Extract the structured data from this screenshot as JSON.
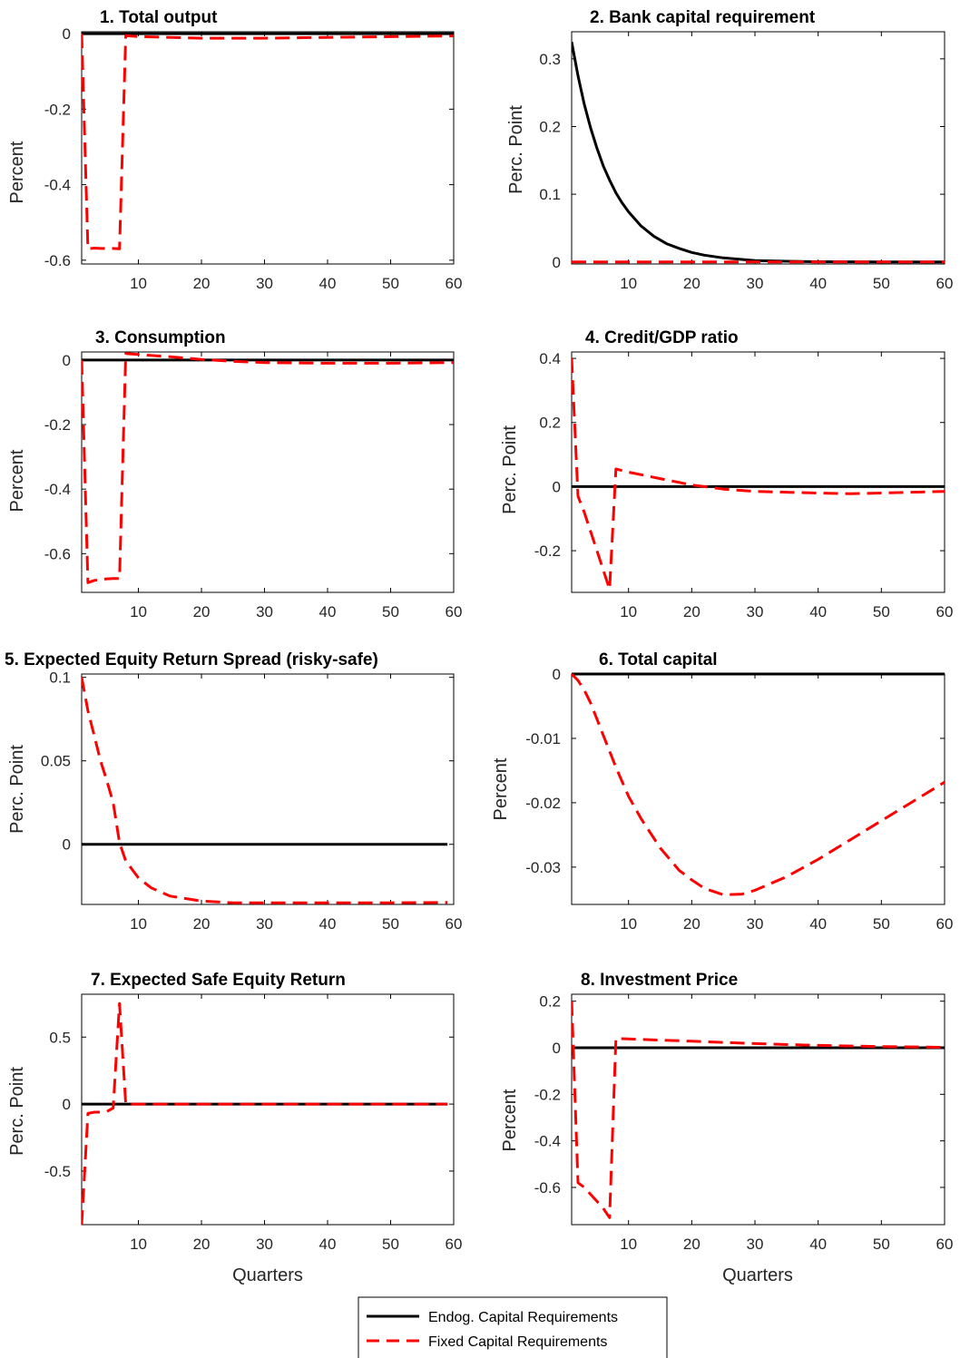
{
  "legend": {
    "entries": [
      {
        "label": "Endog. Capital Requirements",
        "color": "#000000",
        "style": "solid"
      },
      {
        "label": "Fixed Capital Requirements",
        "color": "#ff0000",
        "style": "dashed"
      }
    ]
  },
  "chart_data": [
    {
      "type": "line",
      "title": "1. Total output",
      "ylabel": "Percent",
      "xlabel": "",
      "xlim": [
        1,
        60
      ],
      "ylim": [
        -0.61,
        0.005
      ],
      "xticks": [
        10,
        20,
        30,
        40,
        50,
        60
      ],
      "yticks": [
        0,
        -0.2,
        -0.4,
        -0.6
      ],
      "ytick_labels": [
        "0",
        "-0.2",
        "-0.4",
        "-0.6"
      ],
      "series": [
        {
          "name": "Endog. Capital Requirements",
          "x": [
            1,
            60
          ],
          "y": [
            0,
            0
          ]
        },
        {
          "name": "Fixed Capital Requirements",
          "x": [
            1,
            2,
            3,
            4,
            5,
            6,
            7,
            8,
            10,
            15,
            20,
            30,
            40,
            50,
            60
          ],
          "y": [
            0,
            -0.57,
            -0.568,
            -0.569,
            -0.569,
            -0.569,
            -0.57,
            -0.005,
            -0.008,
            -0.01,
            -0.012,
            -0.012,
            -0.01,
            -0.008,
            -0.006
          ]
        }
      ]
    },
    {
      "type": "line",
      "title": "2. Bank capital requirement",
      "ylabel": "Perc. Point",
      "xlabel": "",
      "xlim": [
        1,
        60
      ],
      "ylim": [
        -0.003,
        0.34
      ],
      "xticks": [
        10,
        20,
        30,
        40,
        50,
        60
      ],
      "yticks": [
        0,
        0.1,
        0.2,
        0.3
      ],
      "ytick_labels": [
        "0",
        "0.1",
        "0.2",
        "0.3"
      ],
      "series": [
        {
          "name": "Endog. Capital Requirements",
          "x": [
            1,
            2,
            3,
            4,
            5,
            6,
            7,
            8,
            9,
            10,
            12,
            14,
            16,
            18,
            20,
            22,
            25,
            30,
            35,
            40,
            50,
            60
          ],
          "y": [
            0.325,
            0.275,
            0.233,
            0.198,
            0.168,
            0.142,
            0.121,
            0.102,
            0.087,
            0.074,
            0.053,
            0.038,
            0.027,
            0.02,
            0.014,
            0.01,
            0.006,
            0.002,
            0.001,
            0.0004,
            0.0001,
            0
          ]
        },
        {
          "name": "Fixed Capital Requirements",
          "x": [
            1,
            60
          ],
          "y": [
            0,
            0
          ]
        }
      ]
    },
    {
      "type": "line",
      "title": "3. Consumption",
      "ylabel": "Percent",
      "xlabel": "",
      "xlim": [
        1,
        60
      ],
      "ylim": [
        -0.72,
        0.025
      ],
      "xticks": [
        10,
        20,
        30,
        40,
        50,
        60
      ],
      "yticks": [
        0,
        -0.2,
        -0.4,
        -0.6
      ],
      "ytick_labels": [
        "0",
        "-0.2",
        "-0.4",
        "-0.6"
      ],
      "series": [
        {
          "name": "Endog. Capital Requirements",
          "x": [
            1,
            60
          ],
          "y": [
            0,
            0
          ]
        },
        {
          "name": "Fixed Capital Requirements",
          "x": [
            1,
            2,
            3,
            4,
            5,
            6,
            7,
            8,
            10,
            15,
            20,
            25,
            30,
            40,
            50,
            60
          ],
          "y": [
            0,
            -0.69,
            -0.683,
            -0.68,
            -0.678,
            -0.677,
            -0.677,
            0.02,
            0.017,
            0.01,
            0.002,
            -0.004,
            -0.008,
            -0.01,
            -0.01,
            -0.008
          ]
        }
      ]
    },
    {
      "type": "line",
      "title": "4. Credit/GDP ratio",
      "ylabel": "Perc. Point",
      "xlabel": "",
      "xlim": [
        1,
        60
      ],
      "ylim": [
        -0.33,
        0.42
      ],
      "xticks": [
        10,
        20,
        30,
        40,
        50,
        60
      ],
      "yticks": [
        0.4,
        0.2,
        0,
        -0.2
      ],
      "ytick_labels": [
        "0.4",
        "0.2",
        "0",
        "-0.2"
      ],
      "series": [
        {
          "name": "Endog. Capital Requirements",
          "x": [
            1,
            60
          ],
          "y": [
            0,
            0
          ]
        },
        {
          "name": "Fixed Capital Requirements",
          "x": [
            1,
            2,
            3,
            4,
            5,
            6,
            7,
            8,
            10,
            15,
            20,
            25,
            30,
            40,
            45,
            50,
            60
          ],
          "y": [
            0.4,
            -0.03,
            -0.08,
            -0.14,
            -0.2,
            -0.26,
            -0.32,
            0.055,
            0.045,
            0.025,
            0.005,
            -0.008,
            -0.015,
            -0.02,
            -0.022,
            -0.02,
            -0.015
          ]
        }
      ]
    },
    {
      "type": "line",
      "title": "5. Expected Equity Return Spread (risky-safe)",
      "ylabel": "Perc. Point",
      "xlabel": "",
      "xlim": [
        1,
        60
      ],
      "ylim": [
        -0.036,
        0.102
      ],
      "xticks": [
        10,
        20,
        30,
        40,
        50,
        60
      ],
      "yticks": [
        0.1,
        0.05,
        0
      ],
      "ytick_labels": [
        "0.1",
        "0.05",
        "0"
      ],
      "series": [
        {
          "name": "Endog. Capital Requirements",
          "x": [
            1,
            59
          ],
          "y": [
            0,
            0
          ]
        },
        {
          "name": "Fixed Capital Requirements",
          "x": [
            1,
            2,
            3,
            4,
            5,
            6,
            7,
            8,
            10,
            12,
            15,
            20,
            25,
            30,
            40,
            50,
            59
          ],
          "y": [
            0.1,
            0.08,
            0.065,
            0.05,
            0.038,
            0.025,
            0.001,
            -0.01,
            -0.02,
            -0.026,
            -0.031,
            -0.034,
            -0.035,
            -0.035,
            -0.035,
            -0.035,
            -0.0348
          ]
        }
      ]
    },
    {
      "type": "line",
      "title": "6. Total capital",
      "ylabel": "Percent",
      "xlabel": "",
      "xlim": [
        1,
        60
      ],
      "ylim": [
        -0.0358,
        0
      ],
      "xticks": [
        10,
        20,
        30,
        40,
        50,
        60
      ],
      "yticks": [
        0,
        -0.01,
        -0.02,
        -0.03
      ],
      "ytick_labels": [
        "0",
        "-0.01",
        "-0.02",
        "-0.03"
      ],
      "series": [
        {
          "name": "Endog. Capital Requirements",
          "x": [
            1,
            60
          ],
          "y": [
            0,
            0
          ]
        },
        {
          "name": "Fixed Capital Requirements",
          "x": [
            1,
            2,
            3,
            4,
            5,
            6,
            7,
            8,
            10,
            12,
            15,
            18,
            20,
            22,
            25,
            28,
            30,
            35,
            40,
            45,
            50,
            55,
            60
          ],
          "y": [
            0,
            -0.001,
            -0.0025,
            -0.0045,
            -0.007,
            -0.0095,
            -0.012,
            -0.0145,
            -0.019,
            -0.0225,
            -0.027,
            -0.0305,
            -0.032,
            -0.0333,
            -0.0343,
            -0.0342,
            -0.0336,
            -0.0315,
            -0.0288,
            -0.0258,
            -0.0228,
            -0.0198,
            -0.0168
          ]
        }
      ]
    },
    {
      "type": "line",
      "title": "7. Expected Safe Equity Return",
      "ylabel": "Perc. Point",
      "xlabel": "Quarters",
      "xlim": [
        1,
        60
      ],
      "ylim": [
        -0.9,
        0.82
      ],
      "xticks": [
        10,
        20,
        30,
        40,
        50,
        60
      ],
      "yticks": [
        0.5,
        0,
        -0.5
      ],
      "ytick_labels": [
        "0.5",
        "0",
        "-0.5"
      ],
      "series": [
        {
          "name": "Endog. Capital Requirements",
          "x": [
            1,
            59
          ],
          "y": [
            0,
            0
          ]
        },
        {
          "name": "Fixed Capital Requirements",
          "x": [
            1,
            2,
            3,
            4,
            5,
            6,
            7,
            8,
            9,
            10,
            20,
            40,
            59
          ],
          "y": [
            -0.9,
            -0.07,
            -0.06,
            -0.06,
            -0.055,
            -0.03,
            0.75,
            0,
            0,
            0,
            0,
            0,
            0
          ]
        }
      ]
    },
    {
      "type": "line",
      "title": "8. Investment Price",
      "ylabel": "Percent",
      "xlabel": "Quarters",
      "xlim": [
        1,
        60
      ],
      "ylim": [
        -0.76,
        0.23
      ],
      "xticks": [
        10,
        20,
        30,
        40,
        50,
        60
      ],
      "yticks": [
        0.2,
        0,
        -0.2,
        -0.4,
        -0.6
      ],
      "ytick_labels": [
        "0.2",
        "0",
        "-0.2",
        "-0.4",
        "-0.6"
      ],
      "series": [
        {
          "name": "Endog. Capital Requirements",
          "x": [
            1,
            60
          ],
          "y": [
            0,
            0
          ]
        },
        {
          "name": "Fixed Capital Requirements",
          "x": [
            1,
            2,
            3,
            4,
            5,
            6,
            7,
            8,
            10,
            20,
            30,
            40,
            50,
            60
          ],
          "y": [
            0.2,
            -0.58,
            -0.6,
            -0.63,
            -0.66,
            -0.69,
            -0.73,
            0.04,
            0.038,
            0.028,
            0.018,
            0.01,
            0.005,
            0.002
          ]
        }
      ]
    }
  ]
}
